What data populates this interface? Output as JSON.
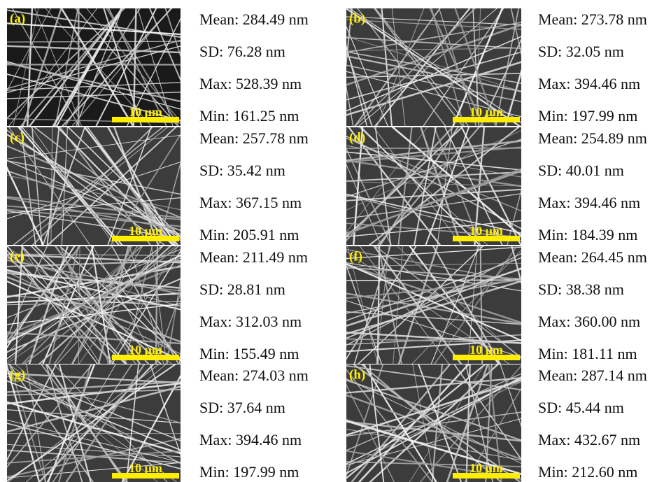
{
  "panels": [
    {
      "label": "(a)",
      "scale_bar": "10 μm",
      "stats": [
        "Mean: 284.49 nm",
        "SD: 76.28 nm",
        "Max: 528.39 nm",
        "Min: 161.25 nm"
      ]
    },
    {
      "label": "(b)",
      "scale_bar": "10 μm",
      "stats": [
        "Mean: 273.78 nm",
        "SD: 32.05 nm",
        "Max: 394.46 nm",
        "Min: 197.99 nm"
      ]
    },
    {
      "label": "(c)",
      "scale_bar": "10 μm",
      "stats": [
        "Mean: 257.78 nm",
        "SD: 35.42 nm",
        "Max: 367.15 nm",
        "Min: 205.91 nm"
      ]
    },
    {
      "label": "(d)",
      "scale_bar": "10 μm",
      "stats": [
        "Mean: 254.89 nm",
        "SD: 40.01 nm",
        "Max: 394.46 nm",
        "Min: 184.39 nm"
      ]
    },
    {
      "label": "(e)",
      "scale_bar": "10 μm",
      "stats": [
        "Mean: 211.49 nm",
        "SD: 28.81 nm",
        "Max: 312.03 nm",
        "Min: 155.49 nm"
      ]
    },
    {
      "label": "(f)",
      "scale_bar": "10 μm",
      "stats": [
        "Mean: 264.45 nm",
        "SD: 38.38 nm",
        "Max: 360.00 nm",
        "Min: 181.11 nm"
      ]
    },
    {
      "label": "(g)",
      "scale_bar": "10 μm",
      "stats": [
        "Mean: 274.03 nm",
        "SD: 37.64 nm",
        "Max: 394.46 nm",
        "Min: 197.99 nm"
      ]
    },
    {
      "label": "(h)",
      "scale_bar": "10 μm",
      "stats": [
        "Mean: 287.14 nm",
        "SD: 45.44 nm",
        "Max: 432.67 nm",
        "Min: 212.60 nm"
      ]
    }
  ]
}
